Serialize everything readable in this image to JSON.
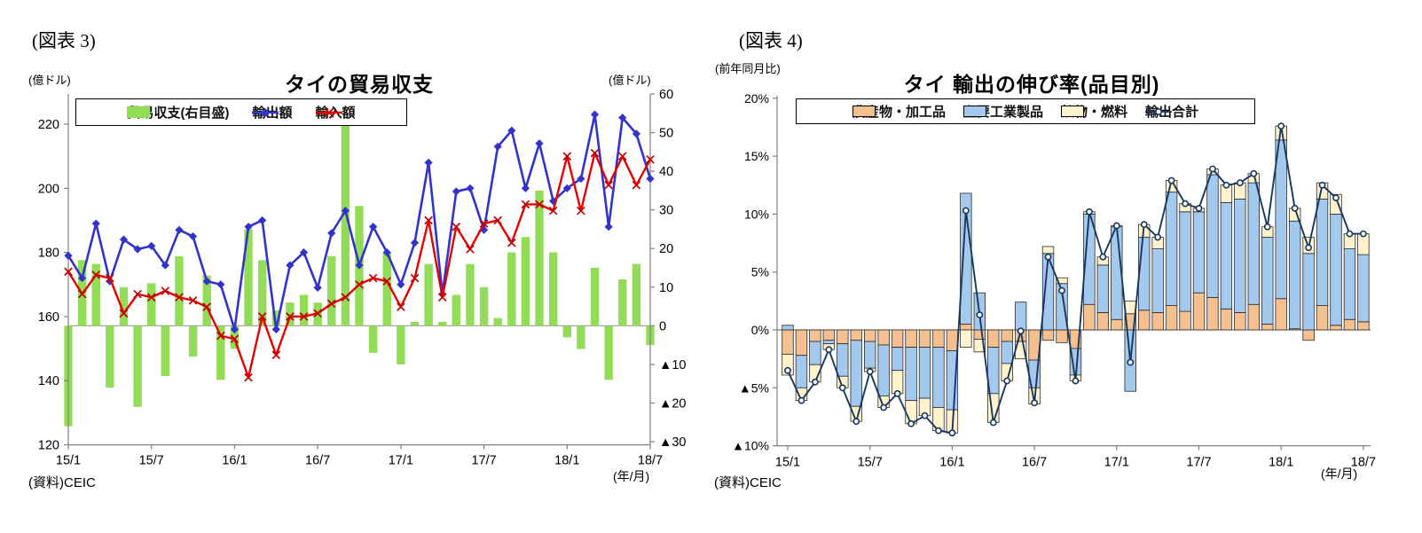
{
  "chart_data": [
    {
      "id": "fig3",
      "type": "bar-line-combo",
      "tag": "(図表 3)",
      "title": "タイの貿易収支",
      "ylabel_left": "(億ドル)",
      "ylabel_right": "(億ドル)",
      "x_caption": "(年/月)",
      "source": "(資料)CEIC",
      "ylim_left": [
        120,
        220
      ],
      "ylim_right": [
        -30,
        60
      ],
      "yticks_left": {
        "values": [
          220,
          200,
          180,
          160,
          140,
          120
        ],
        "labels": [
          "220",
          "200",
          "180",
          "160",
          "140",
          "120"
        ]
      },
      "yticks_right": {
        "values": [
          60,
          50,
          40,
          30,
          20,
          10,
          0,
          -10,
          -20,
          -30
        ],
        "labels": [
          "60",
          "50",
          "40",
          "30",
          "20",
          "10",
          "0",
          "▲10",
          "▲20",
          "▲30"
        ]
      },
      "xticks": {
        "indices": [
          0,
          6,
          12,
          18,
          24,
          30,
          36,
          42
        ],
        "labels": [
          "15/1",
          "15/7",
          "16/1",
          "16/7",
          "17/1",
          "17/7",
          "18/1",
          "18/7"
        ]
      },
      "grid": "zero-line-only",
      "legend_position": "top-inside",
      "series": [
        {
          "name": "貿易収支(右目盛)",
          "type": "bar",
          "axis": "right",
          "color": "#92DC58",
          "values": [
            -26,
            17,
            16,
            -16,
            10,
            -21,
            11,
            -13,
            18,
            -8,
            13,
            -14,
            -6,
            25,
            17,
            4,
            6,
            8,
            6,
            18,
            52,
            31,
            -7,
            19,
            -10,
            1,
            16,
            1,
            8,
            16,
            10,
            2,
            19,
            23,
            35,
            19,
            -3,
            -6,
            15,
            -14,
            12,
            16,
            -5
          ]
        },
        {
          "name": "輸出額",
          "type": "line",
          "axis": "left",
          "marker": "diamond",
          "color": "#3333CC",
          "values": [
            179,
            172,
            189,
            171,
            184,
            181,
            182,
            176,
            187,
            185,
            171,
            170,
            156,
            188,
            190,
            156,
            176,
            180,
            169,
            186,
            193,
            176,
            188,
            180,
            170,
            183,
            208,
            167,
            199,
            200,
            187,
            213,
            218,
            200,
            214,
            196,
            200,
            203,
            223,
            188,
            222,
            217,
            203
          ]
        },
        {
          "name": "輸入額",
          "type": "line",
          "axis": "left",
          "marker": "x",
          "color": "#E60000",
          "values": [
            174,
            167,
            173,
            172,
            161,
            167,
            166,
            168,
            166,
            165,
            163,
            154,
            153,
            141,
            160,
            148,
            160,
            160,
            161,
            164,
            166,
            170,
            172,
            171,
            163,
            172,
            190,
            166,
            188,
            181,
            189,
            190,
            183,
            195,
            195,
            193,
            210,
            193,
            211,
            201,
            210,
            201,
            209
          ]
        }
      ]
    },
    {
      "id": "fig4",
      "type": "stacked-bar-line",
      "tag": "(図表 4)",
      "title": "タイ 輸出の伸び率(品目別)",
      "ylabel_left": "(前年同月比)",
      "x_caption": "(年/月)",
      "source": "(資料)CEIC",
      "ylim": [
        -10,
        20
      ],
      "yticks": {
        "values": [
          20,
          15,
          10,
          5,
          0,
          -5,
          -10
        ],
        "labels": [
          "20%",
          "15%",
          "10%",
          "5%",
          "0%",
          "▲5%",
          "▲10%"
        ]
      },
      "xticks": {
        "indices": [
          0,
          6,
          12,
          18,
          24,
          30,
          36,
          42
        ],
        "labels": [
          "15/1",
          "15/7",
          "16/1",
          "16/7",
          "17/1",
          "17/7",
          "18/1",
          "18/7"
        ]
      },
      "grid": "zero-line-only",
      "legend_position": "top-inside",
      "series": [
        {
          "name": "農産物・加工品",
          "type": "bar",
          "stack": true,
          "color": "#F5C08F",
          "values": [
            -2.1,
            -2.2,
            -1.0,
            -0.9,
            -1.2,
            -0.9,
            -1.0,
            -1.3,
            -1.5,
            -1.5,
            -1.5,
            -1.5,
            -1.8,
            0.5,
            -0.8,
            -1.5,
            -1.0,
            -1.0,
            -2.6,
            -0.9,
            -1.1,
            -1.6,
            2.2,
            1.5,
            0.9,
            1.4,
            1.7,
            1.5,
            2.1,
            1.6,
            3.2,
            2.8,
            1.8,
            1.5,
            2.2,
            0.5,
            2.7,
            0.1,
            -0.9,
            2.1,
            0.4,
            0.9,
            0.7
          ]
        },
        {
          "name": "主要工業製品",
          "type": "bar",
          "stack": true,
          "color": "#A3C9EC",
          "values": [
            0.4,
            -2.8,
            -2.0,
            -0.3,
            -2.8,
            -5.7,
            -2.3,
            -4.4,
            -2.0,
            -4.6,
            -4.4,
            -5.2,
            -5.1,
            11.3,
            3.2,
            -4.0,
            -1.9,
            2.4,
            -2.4,
            6.6,
            4.0,
            -2.3,
            7.8,
            4.1,
            8.0,
            -5.3,
            6.3,
            5.5,
            9.8,
            8.6,
            7.0,
            10.6,
            9.2,
            9.8,
            10.5,
            7.5,
            13.7,
            9.3,
            6.6,
            9.2,
            9.6,
            6.1,
            5.8
          ]
        },
        {
          "name": "鉱物・燃料",
          "type": "bar",
          "stack": true,
          "color": "#FFF2CC",
          "values": [
            -1.8,
            -1.1,
            -1.5,
            -0.5,
            -1.0,
            -1.3,
            -0.3,
            -1.0,
            -2.0,
            -2.0,
            -1.5,
            -2.0,
            -2.0,
            -1.5,
            -1.1,
            -2.5,
            -1.5,
            -1.5,
            -1.4,
            0.6,
            0.5,
            -0.5,
            0.2,
            0.7,
            0.1,
            1.1,
            1.1,
            1.0,
            1.0,
            0.7,
            0.3,
            0.5,
            1.5,
            1.4,
            0.8,
            0.9,
            1.2,
            1.1,
            1.4,
            1.4,
            1.7,
            1.3,
            1.8
          ]
        },
        {
          "name": "輸出合計",
          "type": "line",
          "marker": "circle",
          "color": "#17375E",
          "values": [
            -3.5,
            -6.1,
            -4.5,
            -1.7,
            -5.0,
            -7.9,
            -3.6,
            -6.7,
            -5.5,
            -8.1,
            -7.4,
            -8.7,
            -8.9,
            10.3,
            1.3,
            -8.0,
            -4.4,
            -0.1,
            -6.3,
            6.3,
            3.4,
            -4.4,
            10.2,
            6.3,
            9.0,
            -2.8,
            9.1,
            8.0,
            12.9,
            10.9,
            10.5,
            13.9,
            12.5,
            12.7,
            13.5,
            8.9,
            17.6,
            10.5,
            7.1,
            12.5,
            11.4,
            8.3,
            8.3
          ]
        }
      ]
    }
  ]
}
